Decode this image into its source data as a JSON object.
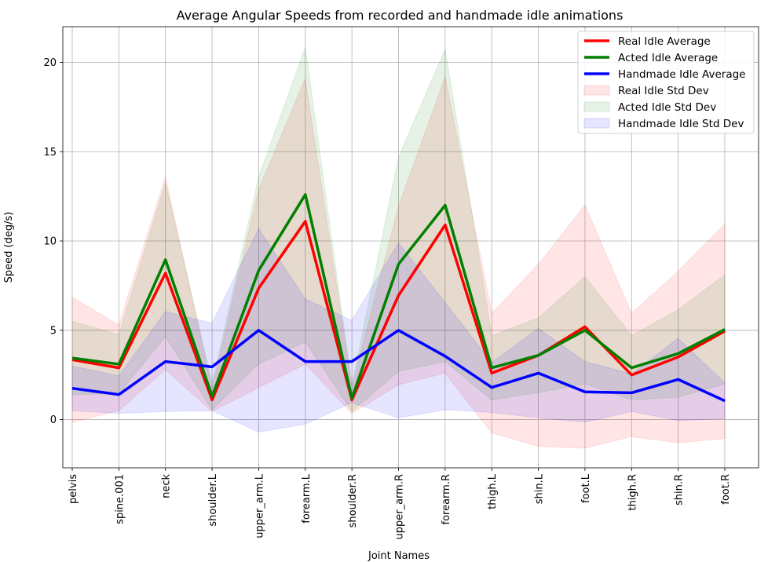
{
  "chart_data": {
    "type": "line",
    "title": "Average Angular Speeds from recorded and handmade idle animations",
    "xlabel": "Joint Names",
    "ylabel": "Speed (deg/s)",
    "ylim": [
      -2.7,
      22.0
    ],
    "yticks": [
      0,
      5,
      10,
      15,
      20
    ],
    "grid": true,
    "legend_position": "upper-right",
    "categories": [
      "pelvis",
      "spine.001",
      "neck",
      "shoulder.L",
      "upper_arm.L",
      "forearm.L",
      "shoulder.R",
      "upper_arm.R",
      "forearm.R",
      "thigh.L",
      "shin.L",
      "foot.L",
      "thigh.R",
      "shin.R",
      "foot.R"
    ],
    "series": [
      {
        "name": "Real Idle Average",
        "color": "#ff0000",
        "values": [
          3.35,
          2.9,
          8.2,
          1.1,
          7.35,
          11.1,
          1.1,
          6.95,
          10.9,
          2.6,
          3.6,
          5.2,
          2.5,
          3.5,
          4.95
        ],
        "std": [
          3.5,
          2.4,
          5.4,
          0.65,
          5.55,
          8.0,
          0.75,
          5.0,
          8.3,
          3.35,
          5.1,
          6.8,
          3.45,
          4.8,
          6.0
        ]
      },
      {
        "name": "Acted Idle Average",
        "color": "#008000",
        "values": [
          3.45,
          3.1,
          8.95,
          1.3,
          8.35,
          12.6,
          1.2,
          8.7,
          12.0,
          2.9,
          3.6,
          5.0,
          2.9,
          3.7,
          5.05
        ],
        "std": [
          2.05,
          1.65,
          4.3,
          0.75,
          5.25,
          8.25,
          0.75,
          6.0,
          8.75,
          1.8,
          2.1,
          3.0,
          1.8,
          2.45,
          3.05
        ]
      },
      {
        "name": "Handmade Idle Average",
        "color": "#0000ff",
        "values": [
          1.75,
          1.4,
          3.25,
          2.95,
          5.0,
          3.25,
          3.25,
          5.0,
          3.55,
          1.8,
          2.6,
          1.55,
          1.5,
          2.25,
          1.05
        ],
        "std": [
          1.25,
          1.05,
          2.8,
          2.45,
          5.7,
          3.5,
          2.3,
          4.9,
          3.0,
          1.4,
          2.5,
          1.7,
          1.05,
          2.3,
          1.0
        ]
      }
    ],
    "legend": [
      {
        "label": "Real Idle Average",
        "kind": "line",
        "color": "#ff0000"
      },
      {
        "label": "Acted Idle Average",
        "kind": "line",
        "color": "#008000"
      },
      {
        "label": "Handmade Idle Average",
        "kind": "line",
        "color": "#0000ff"
      },
      {
        "label": "Real Idle Std Dev",
        "kind": "band",
        "color": "#ff0000"
      },
      {
        "label": "Acted Idle Std Dev",
        "kind": "band",
        "color": "#008000"
      },
      {
        "label": "Handmade Idle Std Dev",
        "kind": "band",
        "color": "#0000ff"
      }
    ]
  }
}
